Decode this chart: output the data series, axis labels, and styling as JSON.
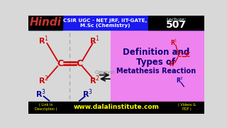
{
  "bg_color": "#d8d8d8",
  "header_bg": "#1a1aee",
  "header_color": "#ffffff",
  "header_line1": "CSIR UGC - NET JRF, IIT-GATE,",
  "header_line2": "M.Sc (Chemistry)",
  "hindi_text": "Hindi",
  "hindi_color": "#cc3333",
  "hindi_bg": "#000000",
  "lecture_label": "Lecture:",
  "lecture_num": "507",
  "lecture_color": "#ffffff",
  "lecture_bg": "#000000",
  "footer_bg": "#000000",
  "footer_text": "www.dalalinstitute.com",
  "footer_color": "#ffff00",
  "footer_left1": "( Link in",
  "footer_left2": "Description )",
  "footer_right1": "( Videos &",
  "footer_right2": "PDF )",
  "pink_box_color": "#ee82ee",
  "title_line1": "Definition and",
  "title_line2": "Types of",
  "title_line3": "Metathesis Reaction",
  "title_color": "#110077",
  "catalyst_text": "Catalyst",
  "catalyst_color": "#888888",
  "r1_color": "#cc0000",
  "r3_color": "#000099",
  "c_color": "#cc0000",
  "dashed_color": "#aaaaaa",
  "arrow_color": "#111111"
}
